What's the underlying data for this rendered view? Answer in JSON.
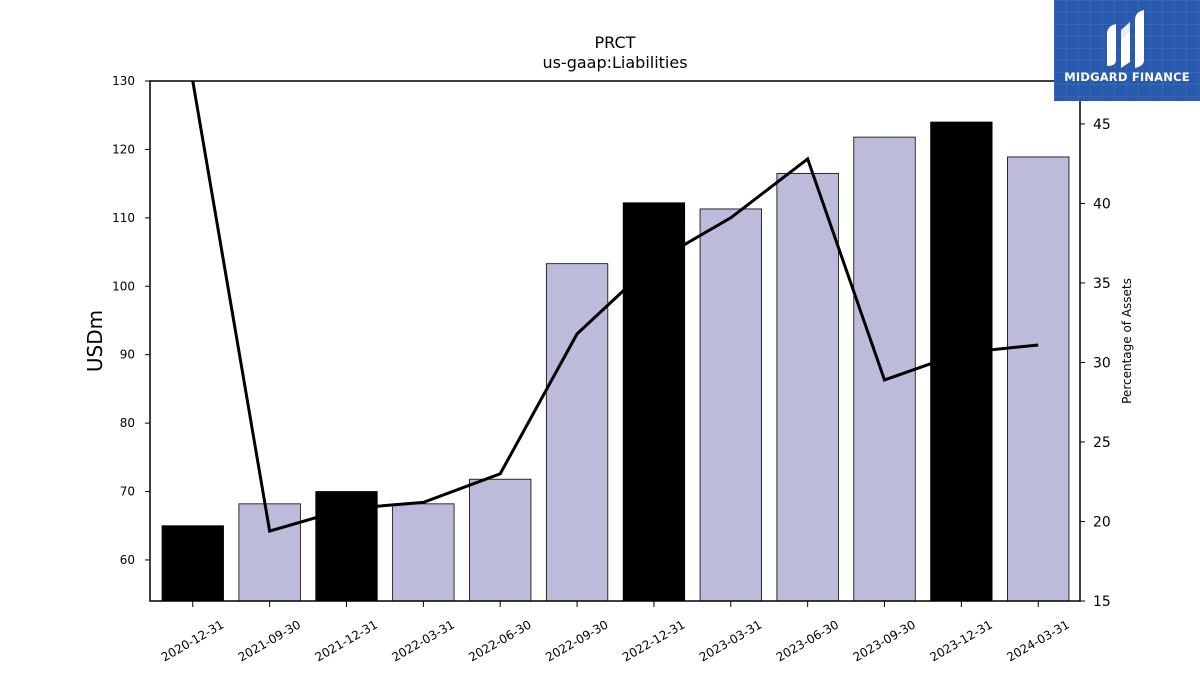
{
  "chart_data": {
    "type": "bar",
    "title": "PRCT",
    "subtitle": "us-gaap:Liabilities",
    "ylabel": "USDm",
    "y2label": "Percentage of Assets",
    "ylim": [
      54,
      130
    ],
    "y2lim": [
      15,
      47.7
    ],
    "yticks": [
      60,
      70,
      80,
      90,
      100,
      110,
      120,
      130
    ],
    "y2ticks": [
      15,
      20,
      25,
      30,
      35,
      40,
      45
    ],
    "categories": [
      "2020-12-31",
      "2021-09-30",
      "2021-12-31",
      "2022-03-31",
      "2022-06-30",
      "2022-09-30",
      "2022-12-31",
      "2023-03-31",
      "2023-06-30",
      "2023-09-30",
      "2023-12-31",
      "2024-03-31"
    ],
    "series": [
      {
        "type": "bar",
        "values": [
          65.0,
          68.2,
          70.0,
          68.2,
          71.8,
          103.3,
          112.2,
          111.3,
          116.5,
          121.8,
          124.0,
          118.9
        ],
        "colors": [
          "#000000",
          "#bdbbda",
          "#000000",
          "#bdbbda",
          "#bdbbda",
          "#bdbbda",
          "#000000",
          "#bdbbda",
          "#bdbbda",
          "#bdbbda",
          "#000000",
          "#bdbbda"
        ]
      },
      {
        "type": "line",
        "axis": "right",
        "values": [
          47.7,
          19.4,
          20.8,
          21.2,
          23.0,
          31.8,
          36.3,
          39.1,
          42.8,
          28.9,
          30.6,
          31.1
        ],
        "color": "#000000"
      }
    ]
  },
  "logo": {
    "text": "MIDGARD FINANCE",
    "color": "#2a5aad"
  }
}
